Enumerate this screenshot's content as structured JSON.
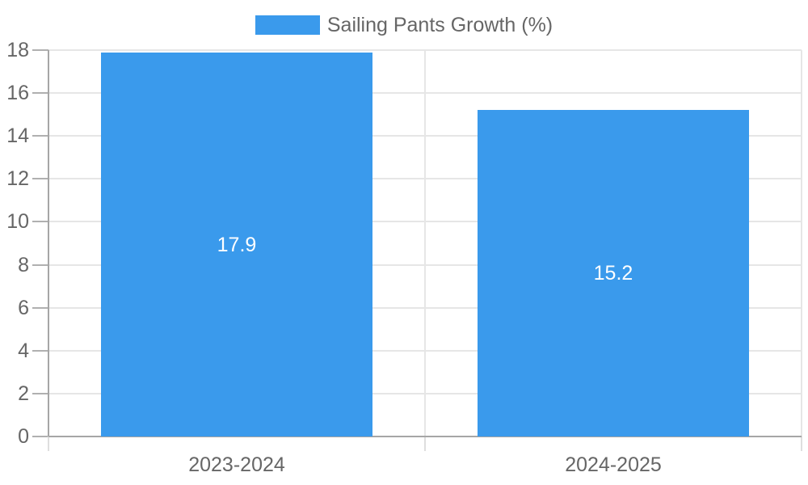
{
  "chart_data": {
    "type": "bar",
    "title": "",
    "legend": "Sailing Pants Growth (%)",
    "legend_position": "top",
    "categories": [
      "2023-2024",
      "2024-2025"
    ],
    "values": [
      17.9,
      15.2
    ],
    "value_labels": [
      "17.9",
      "15.2"
    ],
    "xlabel": "",
    "ylabel": "",
    "ylim": [
      0,
      18
    ],
    "yticks": [
      0,
      2,
      4,
      6,
      8,
      10,
      12,
      14,
      16,
      18
    ],
    "grid": true,
    "colors": {
      "bar": "#3A9AEC",
      "value_label_text": "#ffffff",
      "tick_text": "#666666",
      "legend_text": "#666666",
      "gridline": "#e6e6e6",
      "axis_border": "#a6a6a6",
      "y_tick_mark": "#b0b0b0",
      "x_tick_mark": "#dedede",
      "background": "#ffffff"
    }
  }
}
